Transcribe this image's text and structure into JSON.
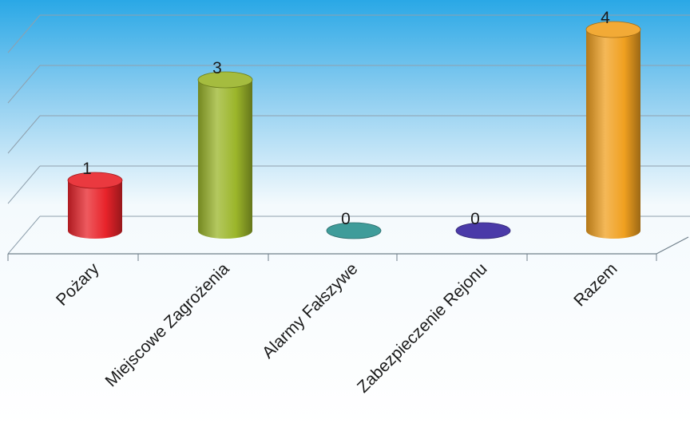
{
  "chart_data": {
    "type": "bar",
    "style": "3d-cylinder",
    "title": "",
    "xlabel": "",
    "ylabel": "",
    "categories": [
      "Pożary",
      "Miejscowe Zagrożenia",
      "Alarmy Fałszywe",
      "Zabezpieczenie Rejonu",
      "Razem"
    ],
    "values": [
      1,
      3,
      0,
      0,
      4
    ],
    "value_labels": [
      "1",
      "3",
      "0",
      "0",
      "4"
    ],
    "colors": [
      "#e8232a",
      "#9bb52a",
      "#3f9c9a",
      "#4a3aa8",
      "#f0a020"
    ],
    "ylim": [
      0,
      4
    ],
    "grid": true,
    "legend": "none",
    "background": "sky-blue-gradient"
  }
}
